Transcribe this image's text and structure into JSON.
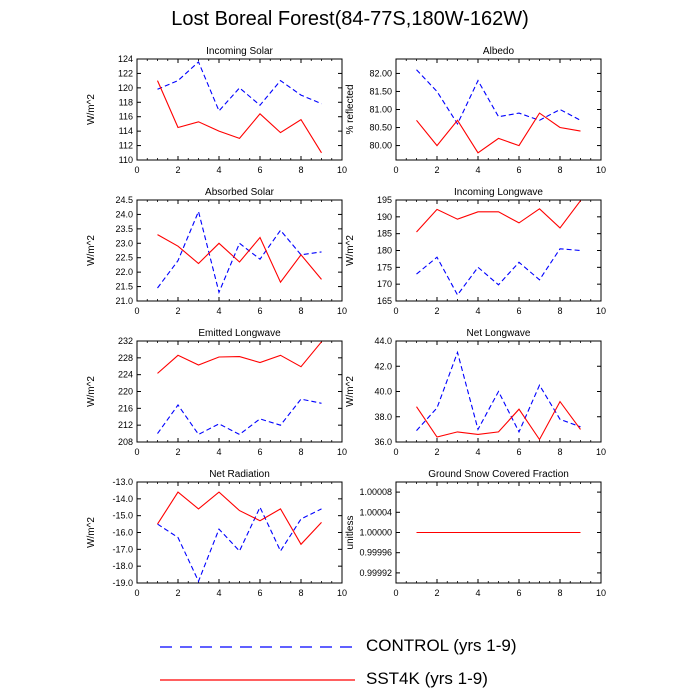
{
  "title": "Lost Boreal Forest(84-77S,180W-162W)",
  "legend": {
    "control": {
      "label": "CONTROL (yrs 1-9)",
      "color": "#0000ff",
      "dash": "dashed"
    },
    "sst4k": {
      "label": "SST4K (yrs 1-9)",
      "color": "#ff0000",
      "dash": "solid"
    }
  },
  "chart_data": [
    {
      "type": "line",
      "title": "Incoming Solar",
      "ylabel": "W/m^2",
      "xlabel": "",
      "xlim": [
        0,
        10
      ],
      "xticks": [
        0,
        2,
        4,
        6,
        8,
        10
      ],
      "ylim": [
        110,
        124
      ],
      "yticks": [
        110,
        112,
        114,
        116,
        118,
        120,
        122,
        124
      ],
      "ytick_decimals": 0,
      "x": [
        1,
        2,
        3,
        4,
        5,
        6,
        7,
        8,
        9
      ],
      "series": [
        {
          "name": "CONTROL (yrs 1-9)",
          "style": "dashed",
          "color": "#0000ff",
          "values": [
            119.8,
            121.0,
            123.6,
            116.8,
            120.0,
            117.6,
            121.0,
            119.0,
            117.8
          ]
        },
        {
          "name": "SST4K (yrs 1-9)",
          "style": "solid",
          "color": "#ff0000",
          "values": [
            121.0,
            114.5,
            115.3,
            114.0,
            113.0,
            116.4,
            113.8,
            115.6,
            111.0
          ]
        }
      ]
    },
    {
      "type": "line",
      "title": "Albedo",
      "ylabel": "% reflected",
      "xlabel": "",
      "xlim": [
        0,
        10
      ],
      "xticks": [
        0,
        2,
        4,
        6,
        8,
        10
      ],
      "ylim": [
        79.6,
        82.4
      ],
      "yticks": [
        80.0,
        80.5,
        81.0,
        81.5,
        82.0
      ],
      "ytick_decimals": 2,
      "x": [
        1,
        2,
        3,
        4,
        5,
        6,
        7,
        8,
        9
      ],
      "series": [
        {
          "name": "CONTROL (yrs 1-9)",
          "style": "dashed",
          "color": "#0000ff",
          "values": [
            82.1,
            81.5,
            80.6,
            81.8,
            80.8,
            80.9,
            80.7,
            81.0,
            80.7
          ]
        },
        {
          "name": "SST4K (yrs 1-9)",
          "style": "solid",
          "color": "#ff0000",
          "values": [
            80.7,
            80.0,
            80.7,
            79.8,
            80.2,
            80.0,
            80.9,
            80.5,
            80.4
          ]
        }
      ]
    },
    {
      "type": "line",
      "title": "Absorbed Solar",
      "ylabel": "W/m^2",
      "xlabel": "",
      "xlim": [
        0,
        10
      ],
      "xticks": [
        0,
        2,
        4,
        6,
        8,
        10
      ],
      "ylim": [
        21.0,
        24.5
      ],
      "yticks": [
        21.0,
        21.5,
        22.0,
        22.5,
        23.0,
        23.5,
        24.0,
        24.5
      ],
      "ytick_decimals": 1,
      "x": [
        1,
        2,
        3,
        4,
        5,
        6,
        7,
        8,
        9
      ],
      "series": [
        {
          "name": "CONTROL (yrs 1-9)",
          "style": "dashed",
          "color": "#0000ff",
          "values": [
            21.45,
            22.4,
            24.1,
            21.3,
            23.0,
            22.45,
            23.45,
            22.6,
            22.7
          ]
        },
        {
          "name": "SST4K (yrs 1-9)",
          "style": "solid",
          "color": "#ff0000",
          "values": [
            23.3,
            22.9,
            22.3,
            23.0,
            22.35,
            23.2,
            21.65,
            22.6,
            21.75
          ]
        }
      ]
    },
    {
      "type": "line",
      "title": "Incoming Longwave",
      "ylabel": "W/m^2",
      "xlabel": "",
      "xlim": [
        0,
        10
      ],
      "xticks": [
        0,
        2,
        4,
        6,
        8,
        10
      ],
      "ylim": [
        165,
        195
      ],
      "yticks": [
        165,
        170,
        175,
        180,
        185,
        190,
        195
      ],
      "ytick_decimals": 0,
      "x": [
        1,
        2,
        3,
        4,
        5,
        6,
        7,
        8,
        9
      ],
      "series": [
        {
          "name": "CONTROL (yrs 1-9)",
          "style": "dashed",
          "color": "#0000ff",
          "values": [
            173.0,
            178.0,
            166.8,
            175.0,
            169.8,
            176.5,
            171.3,
            180.5,
            180.0
          ]
        },
        {
          "name": "SST4K (yrs 1-9)",
          "style": "solid",
          "color": "#ff0000",
          "values": [
            185.5,
            192.2,
            189.3,
            191.5,
            191.5,
            188.2,
            192.4,
            186.7,
            194.8
          ]
        }
      ]
    },
    {
      "type": "line",
      "title": "Emitted Longwave",
      "ylabel": "W/m^2",
      "xlabel": "",
      "xlim": [
        0,
        10
      ],
      "xticks": [
        0,
        2,
        4,
        6,
        8,
        10
      ],
      "ylim": [
        208,
        232
      ],
      "yticks": [
        208,
        212,
        216,
        220,
        224,
        228,
        232
      ],
      "ytick_decimals": 0,
      "x": [
        1,
        2,
        3,
        4,
        5,
        6,
        7,
        8,
        9
      ],
      "series": [
        {
          "name": "CONTROL (yrs 1-9)",
          "style": "dashed",
          "color": "#0000ff",
          "values": [
            210.0,
            216.8,
            209.8,
            212.3,
            209.8,
            213.5,
            212.0,
            218.2,
            217.2
          ]
        },
        {
          "name": "SST4K (yrs 1-9)",
          "style": "solid",
          "color": "#ff0000",
          "values": [
            224.3,
            228.6,
            226.3,
            228.2,
            228.3,
            226.9,
            228.6,
            225.9,
            231.8
          ]
        }
      ]
    },
    {
      "type": "line",
      "title": "Net Longwave",
      "ylabel": "W/m^2",
      "xlabel": "",
      "xlim": [
        0,
        10
      ],
      "xticks": [
        0,
        2,
        4,
        6,
        8,
        10
      ],
      "ylim": [
        36.0,
        44.0
      ],
      "yticks": [
        36.0,
        38.0,
        40.0,
        42.0,
        44.0
      ],
      "ytick_decimals": 1,
      "x": [
        1,
        2,
        3,
        4,
        5,
        6,
        7,
        8,
        9
      ],
      "series": [
        {
          "name": "CONTROL (yrs 1-9)",
          "style": "dashed",
          "color": "#0000ff",
          "values": [
            36.9,
            38.7,
            43.1,
            37.0,
            40.0,
            36.8,
            40.5,
            37.8,
            37.2
          ]
        },
        {
          "name": "SST4K (yrs 1-9)",
          "style": "solid",
          "color": "#ff0000",
          "values": [
            38.8,
            36.4,
            36.8,
            36.6,
            36.8,
            38.6,
            36.2,
            39.2,
            37.0
          ]
        }
      ]
    },
    {
      "type": "line",
      "title": "Net Radiation",
      "ylabel": "W/m^2",
      "xlabel": "",
      "xlim": [
        0,
        10
      ],
      "xticks": [
        0,
        2,
        4,
        6,
        8,
        10
      ],
      "ylim": [
        -19.0,
        -13.0
      ],
      "yticks": [
        -19.0,
        -18.0,
        -17.0,
        -16.0,
        -15.0,
        -14.0,
        -13.0
      ],
      "ytick_decimals": 1,
      "x": [
        1,
        2,
        3,
        4,
        5,
        6,
        7,
        8,
        9
      ],
      "series": [
        {
          "name": "CONTROL (yrs 1-9)",
          "style": "dashed",
          "color": "#0000ff",
          "values": [
            -15.5,
            -16.3,
            -18.9,
            -15.8,
            -17.1,
            -14.5,
            -17.1,
            -15.2,
            -14.6
          ]
        },
        {
          "name": "SST4K (yrs 1-9)",
          "style": "solid",
          "color": "#ff0000",
          "values": [
            -15.5,
            -13.6,
            -14.6,
            -13.6,
            -14.7,
            -15.3,
            -14.6,
            -16.7,
            -15.4
          ]
        }
      ]
    },
    {
      "type": "line",
      "title": "Ground Snow Covered Fraction",
      "ylabel": "unitless",
      "xlabel": "",
      "xlim": [
        0,
        10
      ],
      "xticks": [
        0,
        2,
        4,
        6,
        8,
        10
      ],
      "ylim": [
        0.9999,
        1.0001
      ],
      "yticks": [
        0.99992,
        0.99996,
        1.0,
        1.00004,
        1.00008
      ],
      "ytick_decimals": 5,
      "x": [
        1,
        2,
        3,
        4,
        5,
        6,
        7,
        8,
        9
      ],
      "series": [
        {
          "name": "CONTROL (yrs 1-9)",
          "style": "dashed",
          "color": "#0000ff",
          "values": [
            1.0,
            1.0,
            1.0,
            1.0,
            1.0,
            1.0,
            1.0,
            1.0,
            1.0
          ]
        },
        {
          "name": "SST4K (yrs 1-9)",
          "style": "solid",
          "color": "#ff0000",
          "values": [
            1.0,
            1.0,
            1.0,
            1.0,
            1.0,
            1.0,
            1.0,
            1.0,
            1.0
          ]
        }
      ]
    }
  ]
}
